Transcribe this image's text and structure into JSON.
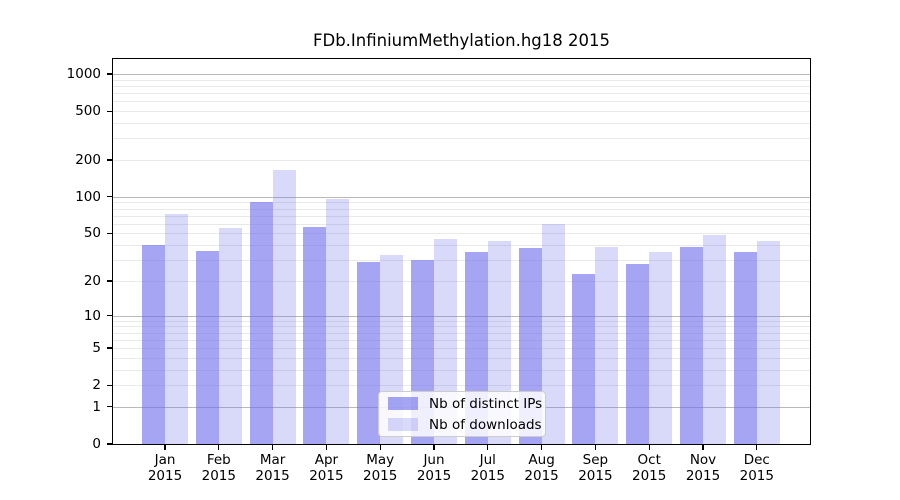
{
  "figure": {
    "background": "#ffffff",
    "frame_color": "#000000",
    "major_gridline_color": "#b9b9b9",
    "minor_gridline_color": "#e9e9e9"
  },
  "chart_data": {
    "type": "bar",
    "title": "FDb.InfiniumMethylation.hg18 2015",
    "xlabel": "",
    "ylabel": "",
    "yscale": "log1p",
    "ylim": [
      0,
      1324
    ],
    "grid": true,
    "legend_position": "lower-center-inside",
    "categories": [
      "Jan 2015",
      "Feb 2015",
      "Mar 2015",
      "Apr 2015",
      "May 2015",
      "Jun 2015",
      "Jul 2015",
      "Aug 2015",
      "Sep 2015",
      "Oct 2015",
      "Nov 2015",
      "Dec 2015"
    ],
    "series": [
      {
        "name": "Nb of distinct IPs",
        "color": "rgba(110,110,235,0.62)",
        "values": [
          40,
          36,
          90,
          57,
          29,
          30,
          35,
          38,
          23,
          28,
          39,
          35
        ]
      },
      {
        "name": "Nb of downloads",
        "color": "rgba(110,110,235,0.26)",
        "values": [
          73,
          56,
          165,
          97,
          33,
          45,
          43,
          60,
          39,
          35,
          49,
          43
        ]
      }
    ],
    "y_ticks": [
      0,
      1,
      2,
      5,
      10,
      20,
      50,
      100,
      200,
      500,
      1000
    ],
    "y_major_gridlines": [
      1,
      10,
      100,
      1000
    ],
    "y_minor_gridlines": [
      2,
      3,
      4,
      5,
      6,
      7,
      8,
      9,
      20,
      30,
      40,
      50,
      60,
      70,
      80,
      90,
      200,
      300,
      400,
      500,
      600,
      700,
      800,
      900
    ]
  }
}
